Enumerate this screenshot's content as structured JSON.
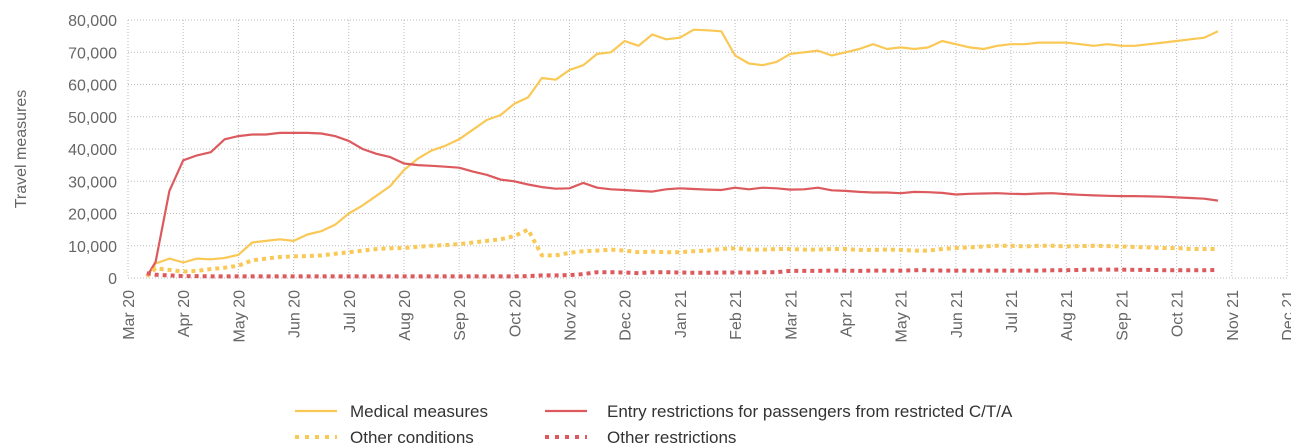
{
  "chart_data": {
    "type": "line",
    "ylabel": "Travel measures",
    "xlim": [
      0,
      21
    ],
    "xticks": [
      {
        "value": 0,
        "label": "Mar 20"
      },
      {
        "value": 1,
        "label": "Apr 20"
      },
      {
        "value": 2,
        "label": "May 20"
      },
      {
        "value": 3,
        "label": "Jun 20"
      },
      {
        "value": 4,
        "label": "Jul 20"
      },
      {
        "value": 5,
        "label": "Aug 20"
      },
      {
        "value": 6,
        "label": "Sep 20"
      },
      {
        "value": 7,
        "label": "Oct 20"
      },
      {
        "value": 8,
        "label": "Nov 20"
      },
      {
        "value": 9,
        "label": "Dec 20"
      },
      {
        "value": 10,
        "label": "Jan 21"
      },
      {
        "value": 11,
        "label": "Feb 21"
      },
      {
        "value": 12,
        "label": "Mar 21"
      },
      {
        "value": 13,
        "label": "Apr 21"
      },
      {
        "value": 14,
        "label": "May 21"
      },
      {
        "value": 15,
        "label": "Jun 21"
      },
      {
        "value": 16,
        "label": "Jul 21"
      },
      {
        "value": 17,
        "label": "Aug 21"
      },
      {
        "value": 18,
        "label": "Sep 21"
      },
      {
        "value": 19,
        "label": "Oct 21"
      },
      {
        "value": 20,
        "label": "Nov 21"
      },
      {
        "value": 21,
        "label": "Dec 21"
      }
    ],
    "ylim": [
      0,
      80000
    ],
    "yticks": [
      0,
      {
        "value": 10000,
        "label": "10,000"
      },
      {
        "value": 20000,
        "label": "20,000"
      },
      {
        "value": 30000,
        "label": "30,000"
      },
      {
        "value": 40000,
        "label": "40,000"
      },
      {
        "value": 50000,
        "label": "50,000"
      },
      {
        "value": 60000,
        "label": "60,000"
      },
      {
        "value": 70000,
        "label": "70,000"
      },
      {
        "value": 80000,
        "label": "80,000"
      }
    ],
    "grid": true,
    "legend": "bottom",
    "x": [
      0.34,
      0.5,
      0.75,
      1.0,
      1.25,
      1.5,
      1.75,
      2.0,
      2.25,
      2.5,
      2.75,
      3.0,
      3.25,
      3.5,
      3.75,
      4.0,
      4.25,
      4.5,
      4.75,
      5.0,
      5.25,
      5.5,
      5.75,
      6.0,
      6.25,
      6.5,
      6.75,
      7.0,
      7.25,
      7.5,
      7.75,
      8.0,
      8.25,
      8.5,
      8.75,
      9.0,
      9.25,
      9.5,
      9.75,
      10.0,
      10.25,
      10.5,
      10.75,
      11.0,
      11.25,
      11.5,
      11.75,
      12.0,
      12.25,
      12.5,
      12.75,
      13.0,
      13.25,
      13.5,
      13.75,
      14.0,
      14.25,
      14.5,
      14.75,
      15.0,
      15.25,
      15.5,
      15.75,
      16.0,
      16.25,
      16.5,
      16.75,
      17.0,
      17.25,
      17.5,
      17.75,
      18.0,
      18.25,
      18.5,
      18.75,
      19.0,
      19.25,
      19.5,
      19.75
    ],
    "series": [
      {
        "name": "Medical measures",
        "color": "#f9c855",
        "style": "solid",
        "values": [
          500,
          4500,
          6000,
          4800,
          6000,
          5800,
          6200,
          7200,
          11000,
          11500,
          12000,
          11500,
          13500,
          14500,
          16500,
          20000,
          22500,
          25500,
          28500,
          33500,
          37000,
          39500,
          41000,
          43000,
          46000,
          49000,
          50500,
          54000,
          56000,
          62000,
          61500,
          64500,
          66000,
          69500,
          70000,
          73500,
          72000,
          75500,
          74000,
          74500,
          77000,
          76800,
          76500,
          69000,
          66500,
          66000,
          67000,
          69500,
          70000,
          70500,
          69000,
          70000,
          71000,
          72500,
          71000,
          71500,
          71000,
          71500,
          73500,
          72500,
          71500,
          71000,
          72000,
          72500,
          72500,
          73000,
          73000,
          73000,
          72500,
          72000,
          72500,
          72000,
          72000,
          72500,
          73000,
          73500,
          74000,
          74500,
          76500
        ]
      },
      {
        "name": "Entry restrictions for passengers from restricted C/T/A",
        "color": "#dc5a5e",
        "style": "solid",
        "values": [
          500,
          5000,
          27000,
          36500,
          38000,
          39000,
          43000,
          44000,
          44500,
          44500,
          45000,
          45000,
          45000,
          44800,
          44000,
          42500,
          40000,
          38500,
          37500,
          35500,
          35000,
          34800,
          34500,
          34200,
          33000,
          32000,
          30500,
          30000,
          29000,
          28200,
          27700,
          27800,
          29500,
          28000,
          27500,
          27300,
          27000,
          26800,
          27500,
          27800,
          27600,
          27400,
          27300,
          28000,
          27500,
          28000,
          27800,
          27400,
          27500,
          28000,
          27200,
          27000,
          26700,
          26500,
          26500,
          26300,
          26700,
          26600,
          26400,
          25900,
          26100,
          26200,
          26300,
          26100,
          26000,
          26200,
          26300,
          26000,
          25800,
          25600,
          25500,
          25400,
          25400,
          25300,
          25200,
          25000,
          24800,
          24600,
          24000
        ]
      },
      {
        "name": "Other conditions",
        "color": "#f9c855",
        "style": "dotted",
        "values": [
          500,
          3000,
          2500,
          2000,
          2200,
          2800,
          3200,
          3800,
          5500,
          6000,
          6500,
          6700,
          6800,
          7000,
          7500,
          8000,
          8500,
          9000,
          9200,
          9300,
          9700,
          10000,
          10200,
          10500,
          11000,
          11500,
          12000,
          13000,
          15000,
          7000,
          7000,
          7800,
          8300,
          8500,
          8800,
          8500,
          8000,
          8200,
          8000,
          8000,
          8300,
          8500,
          9000,
          9200,
          8800,
          8800,
          9000,
          9000,
          8800,
          8800,
          9000,
          9000,
          8700,
          8700,
          8800,
          8700,
          8500,
          8500,
          9000,
          9300,
          9500,
          9800,
          10000,
          10000,
          9800,
          10000,
          10000,
          9800,
          9900,
          10000,
          9900,
          9800,
          9600,
          9500,
          9300,
          9300,
          9000,
          9000,
          9000
        ]
      },
      {
        "name": "Other restrictions",
        "color": "#dc5a5e",
        "style": "dotted",
        "values": [
          1500,
          1000,
          800,
          600,
          600,
          500,
          500,
          500,
          500,
          500,
          500,
          500,
          500,
          500,
          500,
          500,
          500,
          500,
          500,
          500,
          500,
          500,
          500,
          500,
          500,
          500,
          500,
          500,
          600,
          800,
          800,
          900,
          1200,
          1800,
          1800,
          1700,
          1500,
          1800,
          1800,
          1700,
          1600,
          1600,
          1700,
          1700,
          1700,
          1800,
          1800,
          2200,
          2200,
          2200,
          2300,
          2300,
          2200,
          2300,
          2300,
          2300,
          2400,
          2400,
          2300,
          2300,
          2300,
          2300,
          2300,
          2300,
          2300,
          2300,
          2400,
          2400,
          2500,
          2600,
          2600,
          2600,
          2500,
          2500,
          2400,
          2400,
          2400,
          2400,
          2500
        ]
      }
    ]
  }
}
